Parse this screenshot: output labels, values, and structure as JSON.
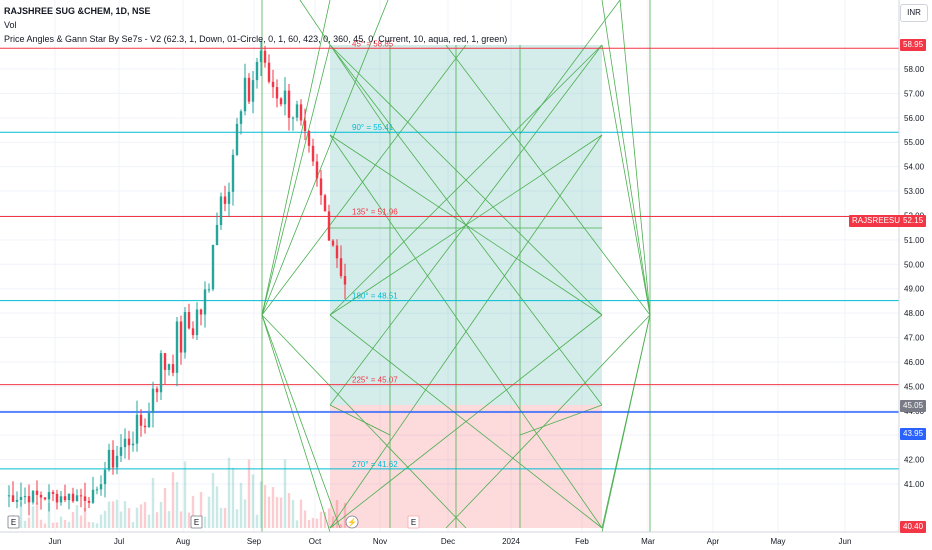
{
  "legend": {
    "symbol": "RAJSHREE SUG &CHEM, 1D, NSE",
    "volume_label": "Vol",
    "indicator": "Price Angles & Gann Star By Se7s - V2 (62.3, 1, Down, 01-Circle, 0, 1, 60, 423, 0, 360, 45, 0, Current, 10, aqua, red, 1, green)"
  },
  "currency": "INR",
  "price_axis": {
    "ticks": [
      "58.00",
      "57.00",
      "56.00",
      "55.00",
      "54.00",
      "53.00",
      "52.00",
      "51.00",
      "50.00",
      "49.00",
      "48.00",
      "47.00",
      "46.00",
      "45.00",
      "44.00",
      "43.00",
      "42.00",
      "41.00"
    ],
    "tags": [
      {
        "text": "58.95",
        "color": "#f23645"
      },
      {
        "text": "RAJSREESUG",
        "color": "#f23645"
      },
      {
        "text": "52.15",
        "color": "#f23645"
      },
      {
        "text": "45.05",
        "color": "#787b86"
      },
      {
        "text": "43.95",
        "color": "#2962ff"
      },
      {
        "text": "40.40",
        "color": "#f23645"
      }
    ]
  },
  "time_axis": {
    "labels": [
      "Jun",
      "Jul",
      "Aug",
      "Sep",
      "Oct",
      "Nov",
      "Dec",
      "2024",
      "Feb",
      "Mar",
      "Apr",
      "May",
      "Jun"
    ]
  },
  "gann_levels": [
    {
      "label": "45° = 58.85",
      "price": 58.85,
      "color": "#f23645"
    },
    {
      "label": "90° = 55.41",
      "price": 55.41,
      "color": "#00bcd4"
    },
    {
      "label": "135° = 51.96",
      "price": 51.96,
      "color": "#f23645"
    },
    {
      "label": "180° = 48.51",
      "price": 48.51,
      "color": "#00bcd4"
    },
    {
      "label": "225° = 45.07",
      "price": 45.07,
      "color": "#f23645"
    },
    {
      "label": "270° = 41.62",
      "price": 41.62,
      "color": "#00bcd4"
    }
  ],
  "horizontal_line": {
    "price": 43.95,
    "color": "#2962ff"
  },
  "zones": {
    "upper_color": "#26a69a",
    "lower_color": "#f23645"
  },
  "markers": {
    "earnings": "E",
    "dividend": "⚡"
  }
}
